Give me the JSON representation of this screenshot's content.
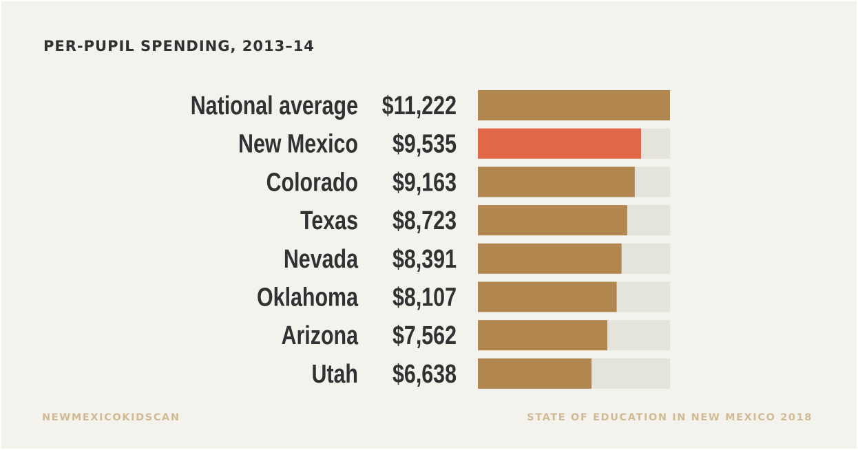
{
  "chart_data": {
    "type": "bar",
    "orientation": "horizontal",
    "title": "PER-PUPIL SPENDING, 2013–14",
    "categories": [
      "National average",
      "New Mexico",
      "Colorado",
      "Texas",
      "Nevada",
      "Oklahoma",
      "Arizona",
      "Utah"
    ],
    "values": [
      11222,
      9535,
      9163,
      8723,
      8391,
      8107,
      7562,
      6638
    ],
    "value_labels": [
      "$11,222",
      "$9,535",
      "$9,163",
      "$8,723",
      "$8,391",
      "$8,107",
      "$7,562",
      "$6,638"
    ],
    "highlight": "New Mexico",
    "xlim": [
      0,
      11222
    ],
    "grid": false,
    "legend": "none"
  },
  "colors": {
    "background": "#f3f2ec",
    "bar": "#b1874f",
    "highlight": "#e06747",
    "track": "#e5e4dc",
    "text": "#2f3133",
    "footer": "#d2bb94"
  },
  "footer": {
    "left": "NEWMEXICOKIDSCAN",
    "right": "STATE OF EDUCATION IN NEW MEXICO 2018"
  }
}
